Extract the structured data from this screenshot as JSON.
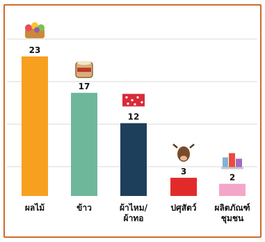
{
  "chart_data": {
    "type": "bar",
    "categories": [
      [
        "ผลไม้"
      ],
      [
        "ข้าว"
      ],
      [
        "ผ้าไหม/",
        "ผ้าทอ"
      ],
      [
        "ปศุสัตว์"
      ],
      [
        "ผลิตภัณฑ์",
        "ชุมชน"
      ]
    ],
    "values": [
      23,
      17,
      12,
      3,
      2
    ],
    "icons": [
      "fruit-basket-icon",
      "rice-sack-icon",
      "silk-cloth-icon",
      "livestock-cow-icon",
      "community-products-icon"
    ],
    "colors": [
      "#f7a020",
      "#6fb79b",
      "#1d3f5c",
      "#e12b2b",
      "#f4a6c8"
    ],
    "grid": true,
    "legend": "none",
    "ylim": [
      0,
      26
    ]
  },
  "style": {
    "frame_color": "#cf6a2a",
    "grid_color": "#d8d8d8"
  }
}
